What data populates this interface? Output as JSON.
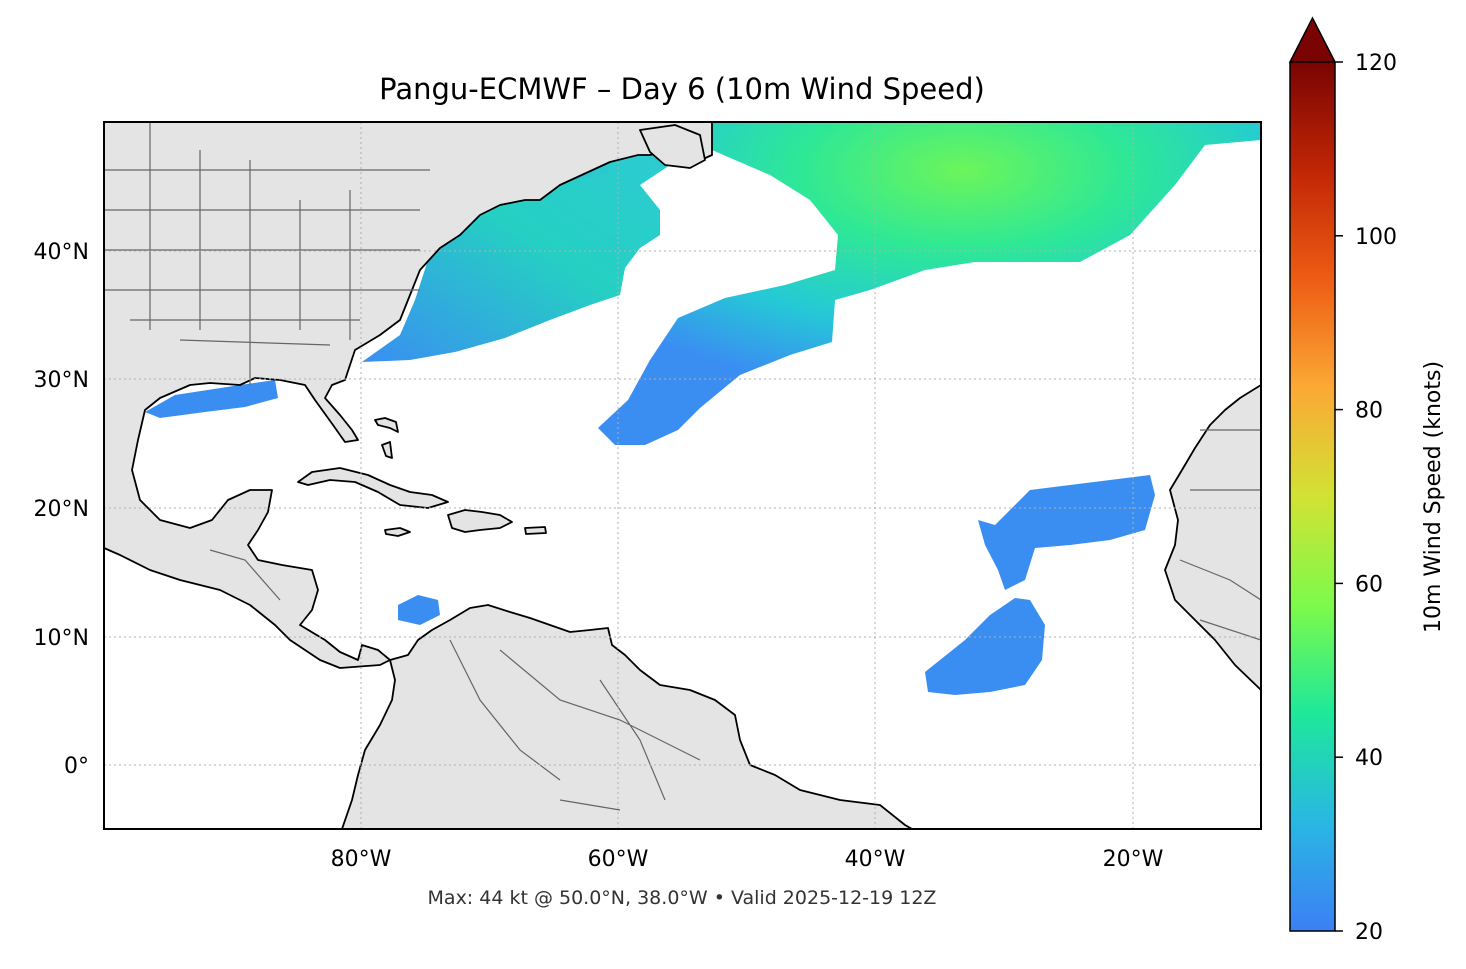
{
  "title": "Pangu-ECMWF – Day 6 (10m Wind Speed)",
  "footer": "Max: 44 kt @ 50.0°N, 38.0°W • Valid 2025-12-19 12Z",
  "map": {
    "extent": {
      "lon_min": -100,
      "lon_max": -10,
      "lat_min": -5,
      "lat_max": 50
    },
    "lat_ticks": [
      {
        "value": 40,
        "label": "40°N"
      },
      {
        "value": 30,
        "label": "30°N"
      },
      {
        "value": 20,
        "label": "20°N"
      },
      {
        "value": 10,
        "label": "10°N"
      },
      {
        "value": 0,
        "label": "0°"
      }
    ],
    "lon_ticks": [
      {
        "value": -80,
        "label": "80°W"
      },
      {
        "value": -60,
        "label": "60°W"
      },
      {
        "value": -40,
        "label": "40°W"
      },
      {
        "value": -20,
        "label": "20°W"
      }
    ],
    "gridlines": true,
    "land_color": "#e4e4e4",
    "ocean_color": "#ffffff"
  },
  "colorbar": {
    "label": "10m Wind Speed (knots)",
    "min": 20,
    "max": 120,
    "extend": "max",
    "ticks": [
      {
        "value": 20,
        "label": "20"
      },
      {
        "value": 40,
        "label": "40"
      },
      {
        "value": 60,
        "label": "60"
      },
      {
        "value": 80,
        "label": "80"
      },
      {
        "value": 100,
        "label": "100"
      },
      {
        "value": 120,
        "label": "120"
      }
    ],
    "colormap_stops": [
      "#3d7ff5",
      "#29b7e3",
      "#1ee89a",
      "#7dfa4a",
      "#d2e234",
      "#fba935",
      "#ee5c14",
      "#c02605",
      "#7a0403"
    ],
    "extend_color": "#7a0403"
  },
  "wind_max": {
    "speed_kt": 44,
    "lat": 50.0,
    "lon": -38.0
  }
}
